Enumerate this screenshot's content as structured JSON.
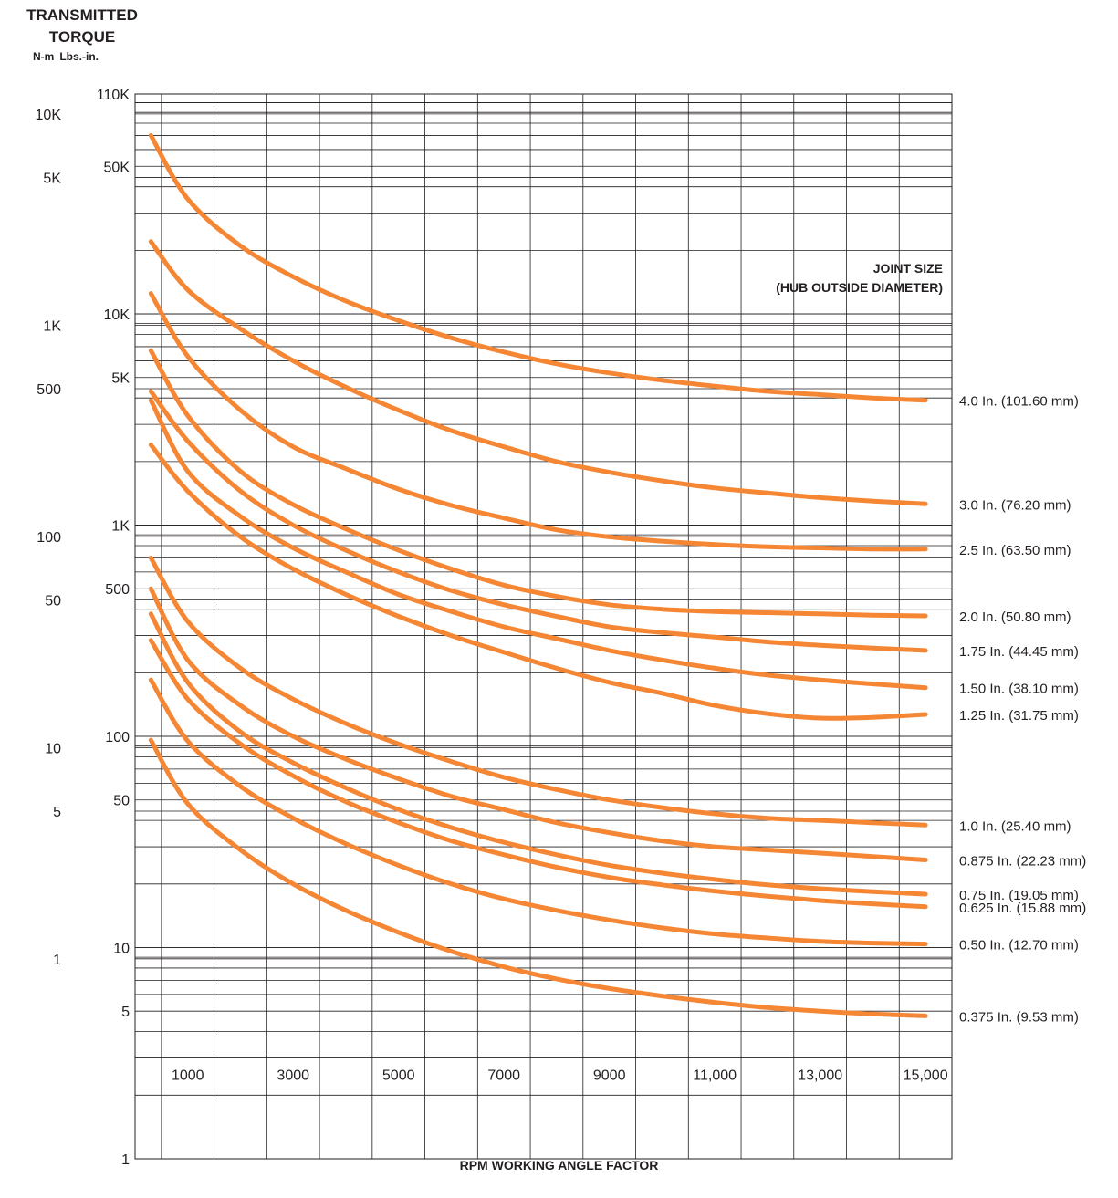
{
  "header": {
    "title_line1": "TRANSMITTED",
    "title_line2": "TORQUE",
    "unit_left": "N-m",
    "unit_right": "Lbs.-in."
  },
  "legend": {
    "title_line1": "JOINT SIZE",
    "title_line2": "(HUB OUTSIDE DIAMETER)"
  },
  "colors": {
    "curve": "#f58634",
    "grid": "#231f20",
    "text": "#231f20"
  },
  "chart_data": {
    "type": "line",
    "title": "TRANSMITTED TORQUE",
    "xlabel": "RPM WORKING ANGLE FACTOR",
    "ylabel": "TRANSMITTED TORQUE",
    "y_scale": "log",
    "xlim": [
      0,
      15500
    ],
    "ylim": [
      1,
      110000
    ],
    "x_ticks": [
      {
        "value": 1000,
        "label": "1000"
      },
      {
        "value": 3000,
        "label": "3000"
      },
      {
        "value": 5000,
        "label": "5000"
      },
      {
        "value": 7000,
        "label": "7000"
      },
      {
        "value": 9000,
        "label": "9000"
      },
      {
        "value": 11000,
        "label": "11,000"
      },
      {
        "value": 13000,
        "label": "13,000"
      },
      {
        "value": 15000,
        "label": "15,000"
      }
    ],
    "y_ticks_lbs_in": [
      {
        "value": 110000,
        "label": "110K"
      },
      {
        "value": 50000,
        "label": "50K"
      },
      {
        "value": 10000,
        "label": "10K"
      },
      {
        "value": 5000,
        "label": "5K"
      },
      {
        "value": 1000,
        "label": "1K"
      },
      {
        "value": 500,
        "label": "500"
      },
      {
        "value": 100,
        "label": "100"
      },
      {
        "value": 50,
        "label": "50"
      },
      {
        "value": 10,
        "label": "10"
      },
      {
        "value": 5,
        "label": "5"
      },
      {
        "value": 1,
        "label": "1"
      }
    ],
    "y_ticks_n_m": [
      {
        "value": 10000,
        "label": "10K"
      },
      {
        "value": 5000,
        "label": "5K"
      },
      {
        "value": 1000,
        "label": "1K"
      },
      {
        "value": 500,
        "label": "500"
      },
      {
        "value": 100,
        "label": "100"
      },
      {
        "value": 50,
        "label": "50"
      },
      {
        "value": 10,
        "label": "10"
      },
      {
        "value": 5,
        "label": "5"
      },
      {
        "value": 1,
        "label": "1"
      }
    ],
    "y_ticks_n_m_at_lbs_in": [
      88500,
      44250,
      8850,
      4425,
      885,
      442.5,
      88.5,
      44.25,
      8.85
    ],
    "grid": true,
    "legend_position": "right",
    "x": [
      300,
      1000,
      2000,
      3000,
      4000,
      5000,
      6000,
      7000,
      8000,
      9000,
      10000,
      11000,
      12000,
      13000,
      14000,
      15000
    ],
    "series": [
      {
        "name": "4.0 In. (101.60 mm)",
        "values": [
          70000,
          35000,
          21000,
          15000,
          11500,
          9300,
          7700,
          6600,
          5800,
          5250,
          4850,
          4550,
          4300,
          4150,
          4000,
          3900
        ]
      },
      {
        "name": "3.0 In. (76.20 mm)",
        "values": [
          22000,
          13000,
          8500,
          6000,
          4500,
          3500,
          2800,
          2350,
          2000,
          1780,
          1620,
          1500,
          1420,
          1350,
          1300,
          1260
        ]
      },
      {
        "name": "2.5 In. (63.50 mm)",
        "values": [
          12500,
          6300,
          3500,
          2350,
          1850,
          1480,
          1240,
          1080,
          950,
          880,
          840,
          810,
          790,
          780,
          770,
          770
        ]
      },
      {
        "name": "2.0 In. (50.80 mm)",
        "values": [
          6700,
          3300,
          1800,
          1250,
          960,
          760,
          620,
          520,
          460,
          420,
          400,
          390,
          385,
          380,
          375,
          372
        ]
      },
      {
        "name": "1.75 In. (44.45 mm)",
        "values": [
          4300,
          2500,
          1450,
          1000,
          760,
          600,
          490,
          420,
          370,
          330,
          310,
          295,
          280,
          270,
          262,
          255
        ]
      },
      {
        "name": "1.50 In. (38.10 mm)",
        "values": [
          3900,
          1800,
          1100,
          780,
          600,
          470,
          390,
          330,
          290,
          255,
          230,
          210,
          195,
          185,
          177,
          170
        ]
      },
      {
        "name": "1.25 In. (31.75 mm)",
        "values": [
          2400,
          1450,
          880,
          620,
          470,
          370,
          300,
          250,
          210,
          180,
          160,
          140,
          128,
          122,
          123,
          127
        ]
      },
      {
        "name": "1.0 In. (25.40 mm)",
        "values": [
          700,
          350,
          210,
          150,
          115,
          92,
          76,
          64,
          56,
          50,
          46,
          43,
          41,
          40,
          39,
          38
        ]
      },
      {
        "name": "0.875 In. (22.23 mm)",
        "values": [
          500,
          230,
          140,
          100,
          78,
          63,
          52,
          45,
          39,
          35,
          32,
          30,
          29,
          28,
          27,
          26
        ]
      },
      {
        "name": "0.75 In. (19.05 mm)",
        "values": [
          380,
          180,
          105,
          75,
          57,
          45,
          37,
          31.5,
          27.5,
          24.5,
          22.5,
          21,
          19.8,
          19,
          18.4,
          17.9
        ]
      },
      {
        "name": "0.625 In. (15.88 mm)",
        "values": [
          285,
          150,
          92,
          65,
          49,
          39,
          32,
          27.5,
          24,
          21.5,
          19.8,
          18.5,
          17.5,
          16.7,
          16.1,
          15.6
        ]
      },
      {
        "name": "0.50 In. (12.70 mm)",
        "values": [
          185,
          95,
          58,
          41,
          31,
          24.5,
          20,
          17,
          15,
          13.5,
          12.4,
          11.6,
          11.1,
          10.7,
          10.5,
          10.4
        ]
      },
      {
        "name": "0.375 In. (9.53 mm)",
        "values": [
          96,
          48,
          29,
          20,
          15,
          11.8,
          9.6,
          8.1,
          7.1,
          6.4,
          5.9,
          5.5,
          5.2,
          5.0,
          4.85,
          4.75
        ]
      }
    ]
  }
}
